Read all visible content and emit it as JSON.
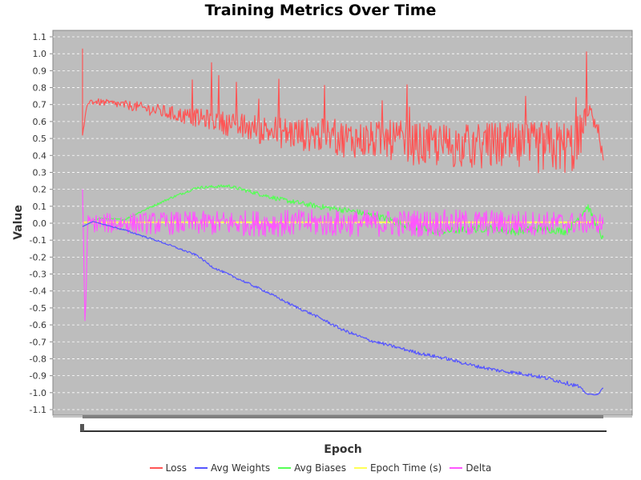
{
  "chart_data": {
    "type": "line",
    "title": "Training Metrics Over Time",
    "xlabel": "Epoch",
    "ylabel": "Value",
    "ylim": [
      -1.15,
      1.15
    ],
    "yticks": [
      "1.1",
      "1.0",
      "0.9",
      "0.8",
      "0.7",
      "0.6",
      "0.5",
      "0.4",
      "0.3",
      "0.2",
      "0.1",
      "0.0",
      "-0.1",
      "-0.2",
      "-0.3",
      "-0.4",
      "-0.5",
      "-0.6",
      "-0.7",
      "-0.8",
      "-0.9",
      "-1.0",
      "-1.1"
    ],
    "grid": true,
    "legend_position": "bottom",
    "series": [
      {
        "name": "Loss",
        "color": "#ff5555",
        "x": [
          0,
          0.01,
          0.05,
          0.1,
          0.15,
          0.2,
          0.25,
          0.3,
          0.35,
          0.4,
          0.45,
          0.5,
          0.55,
          0.6,
          0.65,
          0.7,
          0.75,
          0.8,
          0.85,
          0.9,
          0.95,
          0.97,
          0.99,
          1.0
        ],
        "values": [
          0.52,
          0.72,
          0.71,
          0.69,
          0.66,
          0.63,
          0.61,
          0.57,
          0.55,
          0.53,
          0.52,
          0.5,
          0.49,
          0.49,
          0.46,
          0.46,
          0.45,
          0.46,
          0.44,
          0.45,
          0.45,
          0.68,
          0.55,
          0.37
        ],
        "amplitude": [
          0,
          0.02,
          0.02,
          0.03,
          0.04,
          0.05,
          0.06,
          0.08,
          0.09,
          0.1,
          0.1,
          0.11,
          0.11,
          0.12,
          0.13,
          0.13,
          0.14,
          0.14,
          0.15,
          0.16,
          0.16,
          0.05,
          0.05,
          0.03
        ]
      },
      {
        "name": "Avg Weights",
        "color": "#5555ff",
        "x": [
          0,
          0.02,
          0.08,
          0.15,
          0.22,
          0.25,
          0.3,
          0.35,
          0.4,
          0.45,
          0.5,
          0.55,
          0.6,
          0.65,
          0.7,
          0.75,
          0.8,
          0.85,
          0.9,
          0.95,
          0.97,
          0.99,
          1.0
        ],
        "values": [
          -0.02,
          0.01,
          -0.04,
          -0.11,
          -0.19,
          -0.26,
          -0.33,
          -0.4,
          -0.48,
          -0.55,
          -0.63,
          -0.69,
          -0.73,
          -0.77,
          -0.8,
          -0.84,
          -0.87,
          -0.89,
          -0.92,
          -0.96,
          -1.01,
          -1.01,
          -0.97
        ],
        "amplitude": [
          0,
          0,
          0.005,
          0.005,
          0.006,
          0.006,
          0.007,
          0.007,
          0.008,
          0.008,
          0.009,
          0.009,
          0.009,
          0.01,
          0.01,
          0.01,
          0.011,
          0.011,
          0.012,
          0.012,
          0.004,
          0.004,
          0.004
        ]
      },
      {
        "name": "Avg Biases",
        "color": "#55ff55",
        "x": [
          0,
          0.03,
          0.08,
          0.12,
          0.17,
          0.22,
          0.28,
          0.33,
          0.38,
          0.45,
          0.52,
          0.58,
          0.63,
          0.68,
          0.73,
          0.78,
          0.83,
          0.88,
          0.93,
          0.97,
          1.0
        ],
        "values": [
          -0.02,
          0.03,
          0.02,
          0.08,
          0.15,
          0.21,
          0.22,
          0.18,
          0.14,
          0.1,
          0.07,
          0.03,
          -0.02,
          -0.05,
          -0.04,
          -0.03,
          -0.05,
          -0.03,
          -0.05,
          0.1,
          -0.1
        ],
        "amplitude": [
          0,
          0.005,
          0.005,
          0.006,
          0.007,
          0.008,
          0.01,
          0.012,
          0.014,
          0.016,
          0.018,
          0.02,
          0.022,
          0.022,
          0.022,
          0.022,
          0.022,
          0.022,
          0.022,
          0.02,
          0.02
        ]
      },
      {
        "name": "Epoch Time (s)",
        "color": "#ffff55",
        "x": [
          0,
          1
        ],
        "values": [
          0.005,
          0.005
        ],
        "amplitude": [
          0,
          0
        ]
      },
      {
        "name": "Delta",
        "color": "#ff55ff",
        "x": [
          0,
          0.005,
          0.01,
          0.05,
          0.2,
          0.4,
          0.6,
          0.8,
          1.0
        ],
        "values": [
          0.2,
          -0.64,
          0.0,
          0.0,
          0.0,
          0.0,
          0.0,
          0.0,
          0.0
        ],
        "amplitude": [
          0,
          0,
          0.05,
          0.06,
          0.07,
          0.08,
          0.08,
          0.08,
          0.06
        ]
      }
    ]
  }
}
